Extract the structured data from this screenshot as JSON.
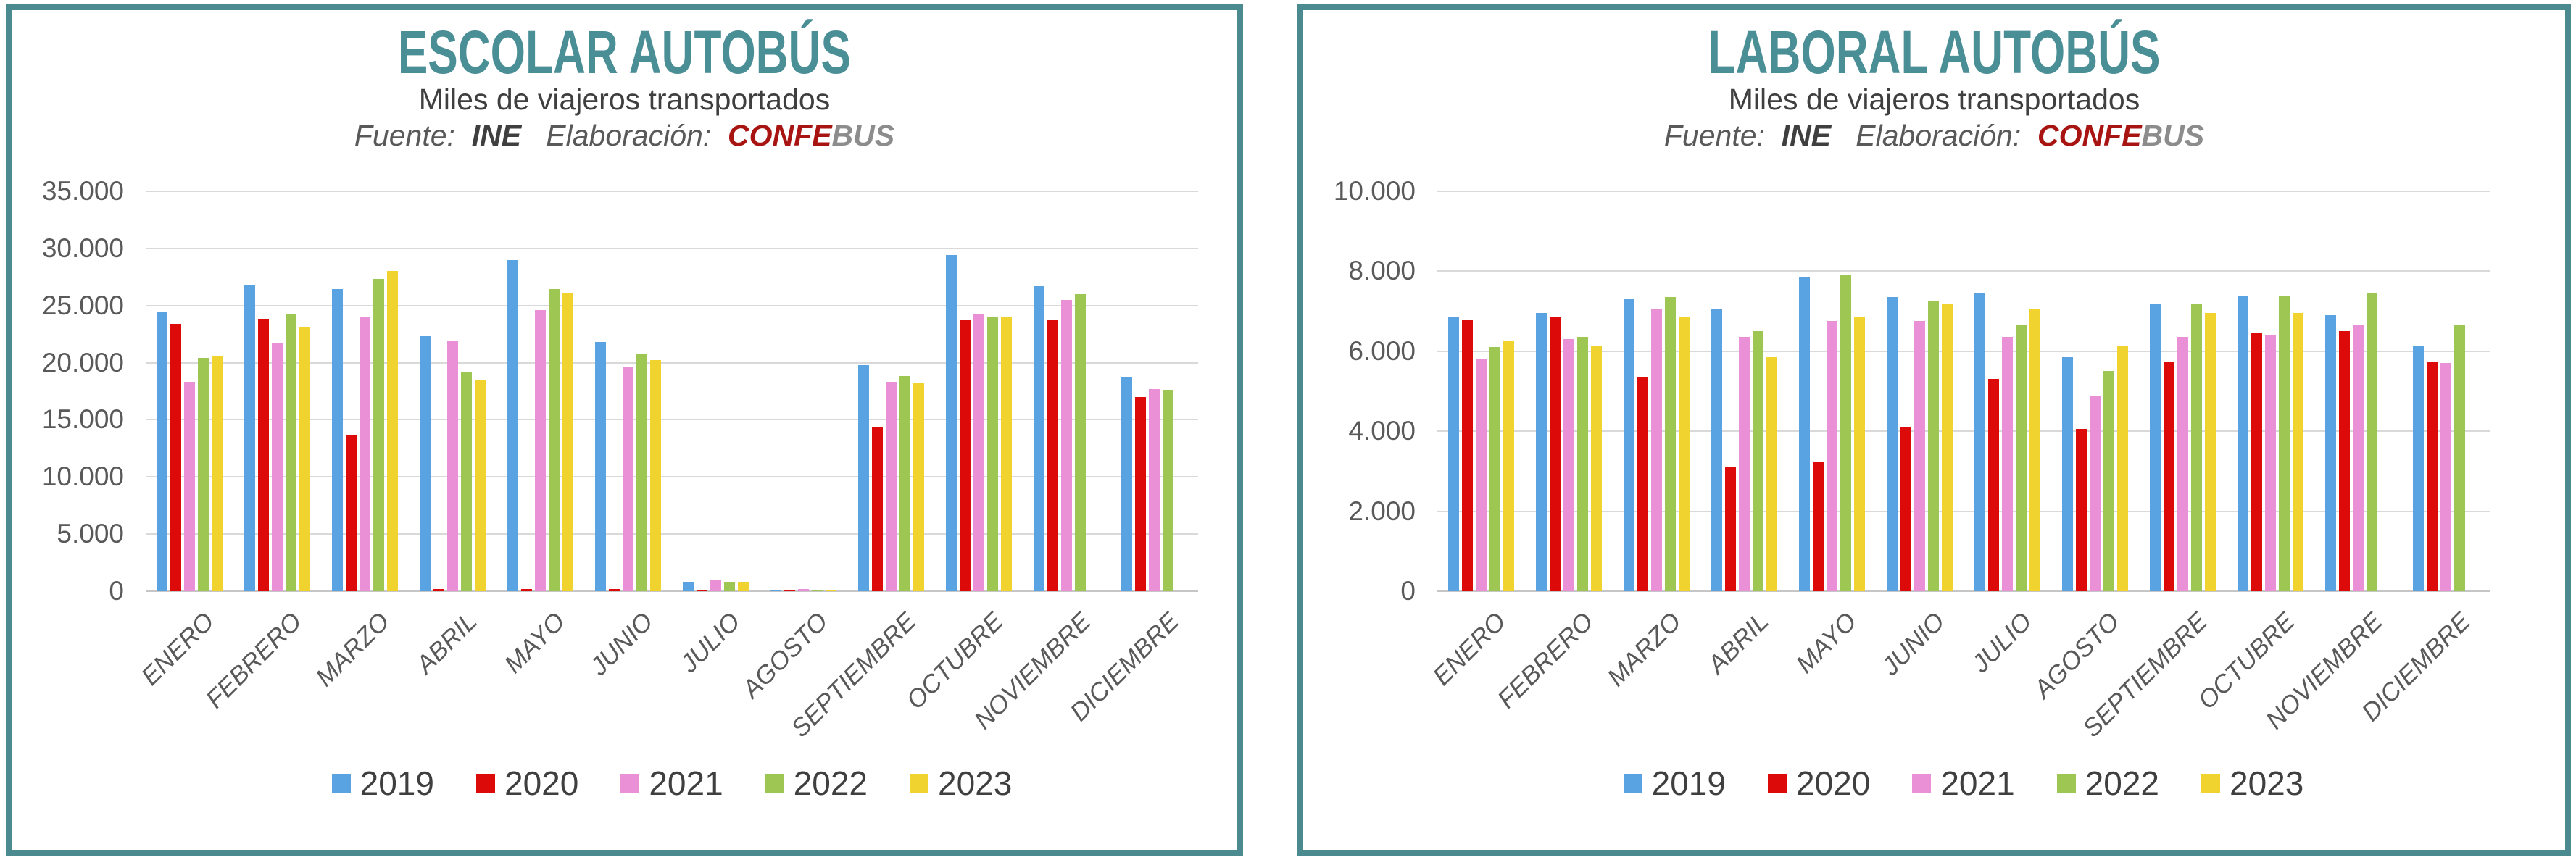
{
  "page": {
    "background": "#FFFFFF",
    "panel_border_color": "#4B8B8F",
    "title_color": "#4A8E96",
    "text_gray": "#595959",
    "gridline_color": "#D9D9D9"
  },
  "panels": [
    {
      "title": "ESCOLAR AUTOBÚS",
      "subtitle": "Miles de viajeros transportados",
      "source_label": "Fuente:",
      "source_value": "INE",
      "elaboration_label": "Elaboración:",
      "brand_part1": "CONFE",
      "brand_part2": "BUS"
    },
    {
      "title": "LABORAL AUTOBÚS",
      "subtitle": "Miles de viajeros transportados",
      "source_label": "Fuente:",
      "source_value": "INE",
      "elaboration_label": "Elaboración:",
      "brand_part1": "CONFE",
      "brand_part2": "BUS"
    }
  ],
  "chart_data": [
    {
      "type": "bar",
      "title": "ESCOLAR AUTOBÚS",
      "subtitle": "Miles de viajeros transportados",
      "categories": [
        "ENERO",
        "FEBRERO",
        "MARZO",
        "ABRIL",
        "MAYO",
        "JUNIO",
        "JULIO",
        "AGOSTO",
        "SEPTIEMBRE",
        "OCTUBRE",
        "NOVIEMBRE",
        "DICIEMBRE"
      ],
      "series": [
        {
          "name": "2019",
          "color": "#5AA3E2",
          "values": [
            24400,
            26850,
            26450,
            22300,
            28950,
            21800,
            850,
            150,
            19800,
            29400,
            26700,
            18750
          ]
        },
        {
          "name": "2020",
          "color": "#DD0A0A",
          "values": [
            23400,
            23850,
            13650,
            200,
            200,
            200,
            150,
            100,
            14300,
            23800,
            23750,
            17000
          ]
        },
        {
          "name": "2021",
          "color": "#E990D6",
          "values": [
            18300,
            21700,
            23950,
            21900,
            24600,
            19650,
            1000,
            200,
            18300,
            24200,
            25500,
            17700
          ]
        },
        {
          "name": "2022",
          "color": "#9DC653",
          "values": [
            20400,
            24200,
            27350,
            19200,
            26450,
            20800,
            850,
            150,
            18800,
            23950,
            26000,
            17650
          ]
        },
        {
          "name": "2023",
          "color": "#F0D32F",
          "values": [
            20550,
            23050,
            28000,
            18450,
            26150,
            20200,
            850,
            100,
            18200,
            24050,
            null,
            null
          ]
        }
      ],
      "ylim": [
        0,
        35000
      ],
      "yticks": [
        "0",
        "5.000",
        "10.000",
        "15.000",
        "20.000",
        "25.000",
        "30.000",
        "35.000"
      ],
      "grid": true,
      "legend_position": "bottom"
    },
    {
      "type": "bar",
      "title": "LABORAL AUTOBÚS",
      "subtitle": "Miles de viajeros transportados",
      "categories": [
        "ENERO",
        "FEBRERO",
        "MARZO",
        "ABRIL",
        "MAYO",
        "JUNIO",
        "JULIO",
        "AGOSTO",
        "SEPTIEMBRE",
        "OCTUBRE",
        "NOVIEMBRE",
        "DICIEMBRE"
      ],
      "series": [
        {
          "name": "2019",
          "color": "#5AA3E2",
          "values": [
            6850,
            6950,
            7300,
            7050,
            7850,
            7350,
            7450,
            5850,
            7200,
            7400,
            6900,
            6150
          ]
        },
        {
          "name": "2020",
          "color": "#DD0A0A",
          "values": [
            6800,
            6850,
            5350,
            3100,
            3250,
            4100,
            5300,
            4050,
            5750,
            6450,
            6500,
            5750
          ]
        },
        {
          "name": "2021",
          "color": "#E990D6",
          "values": [
            5800,
            6300,
            7050,
            6350,
            6750,
            6750,
            6350,
            4900,
            6350,
            6400,
            6650,
            5700
          ]
        },
        {
          "name": "2022",
          "color": "#9DC653",
          "values": [
            6100,
            6350,
            7350,
            6500,
            7900,
            7250,
            6650,
            5500,
            7200,
            7400,
            7450,
            6650
          ]
        },
        {
          "name": "2023",
          "color": "#F0D32F",
          "values": [
            6250,
            6150,
            6850,
            5850,
            6850,
            7200,
            7050,
            6150,
            6950,
            6950,
            null,
            null
          ]
        }
      ],
      "ylim": [
        0,
        10000
      ],
      "yticks": [
        "0",
        "2.000",
        "4.000",
        "6.000",
        "8.000",
        "10.000"
      ],
      "grid": true,
      "legend_position": "bottom"
    }
  ]
}
